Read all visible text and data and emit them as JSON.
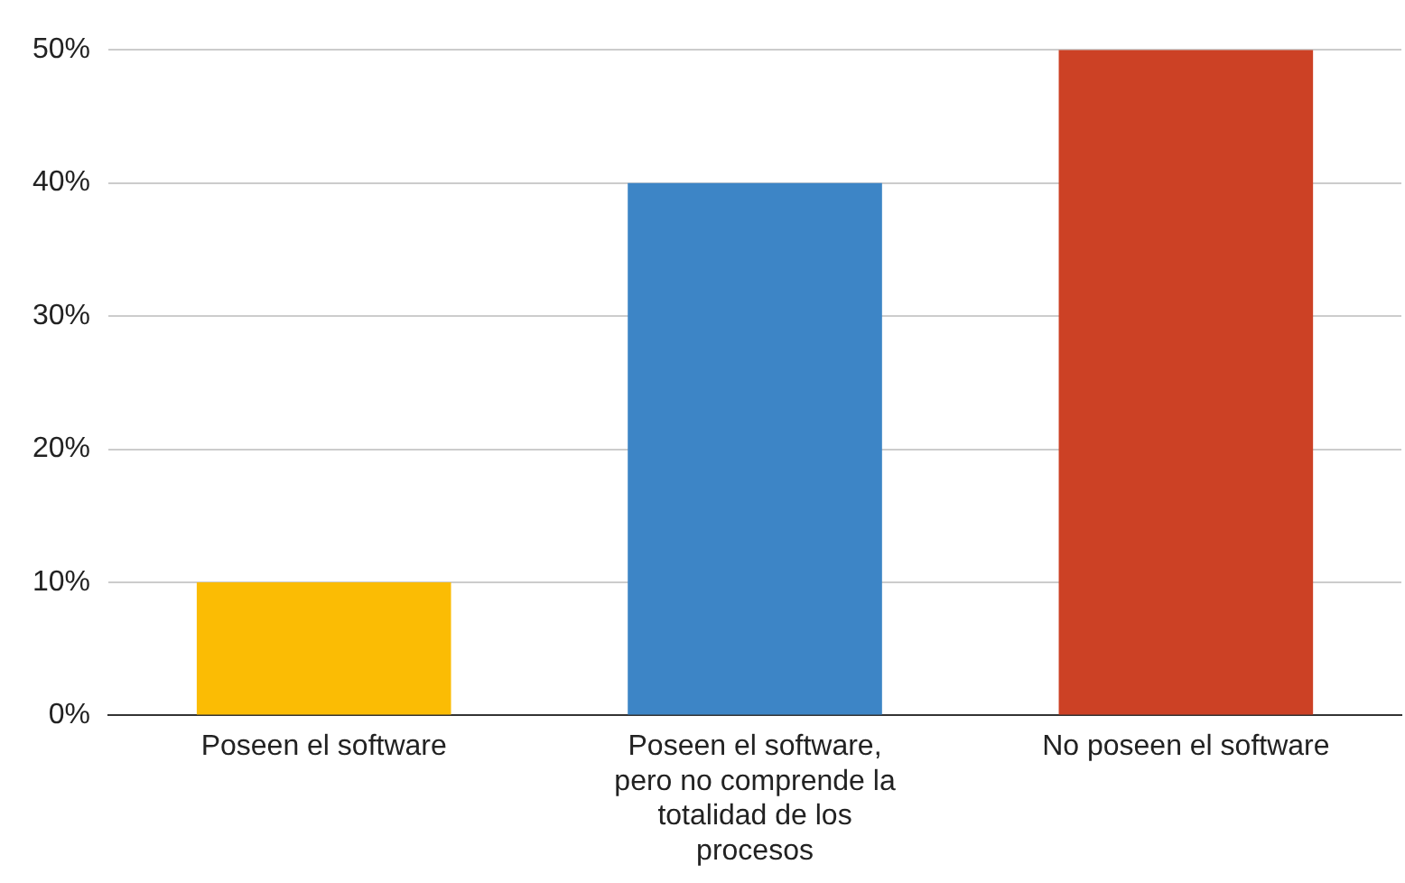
{
  "chart_data": {
    "type": "bar",
    "categories": [
      "Poseen el software",
      "Poseen el software, pero no comprende la totalidad de los procesos",
      "No poseen el software"
    ],
    "values": [
      10,
      40,
      50
    ],
    "colors": [
      "#fbbc04",
      "#3d85c6",
      "#cc4125"
    ],
    "ylim": [
      0,
      50
    ],
    "yticks": [
      {
        "value": 0,
        "label": "0%"
      },
      {
        "value": 10,
        "label": "10%"
      },
      {
        "value": 20,
        "label": "20%"
      },
      {
        "value": 30,
        "label": "30%"
      },
      {
        "value": 40,
        "label": "40%"
      },
      {
        "value": 50,
        "label": "50%"
      }
    ],
    "grid": "y",
    "legend": false
  }
}
